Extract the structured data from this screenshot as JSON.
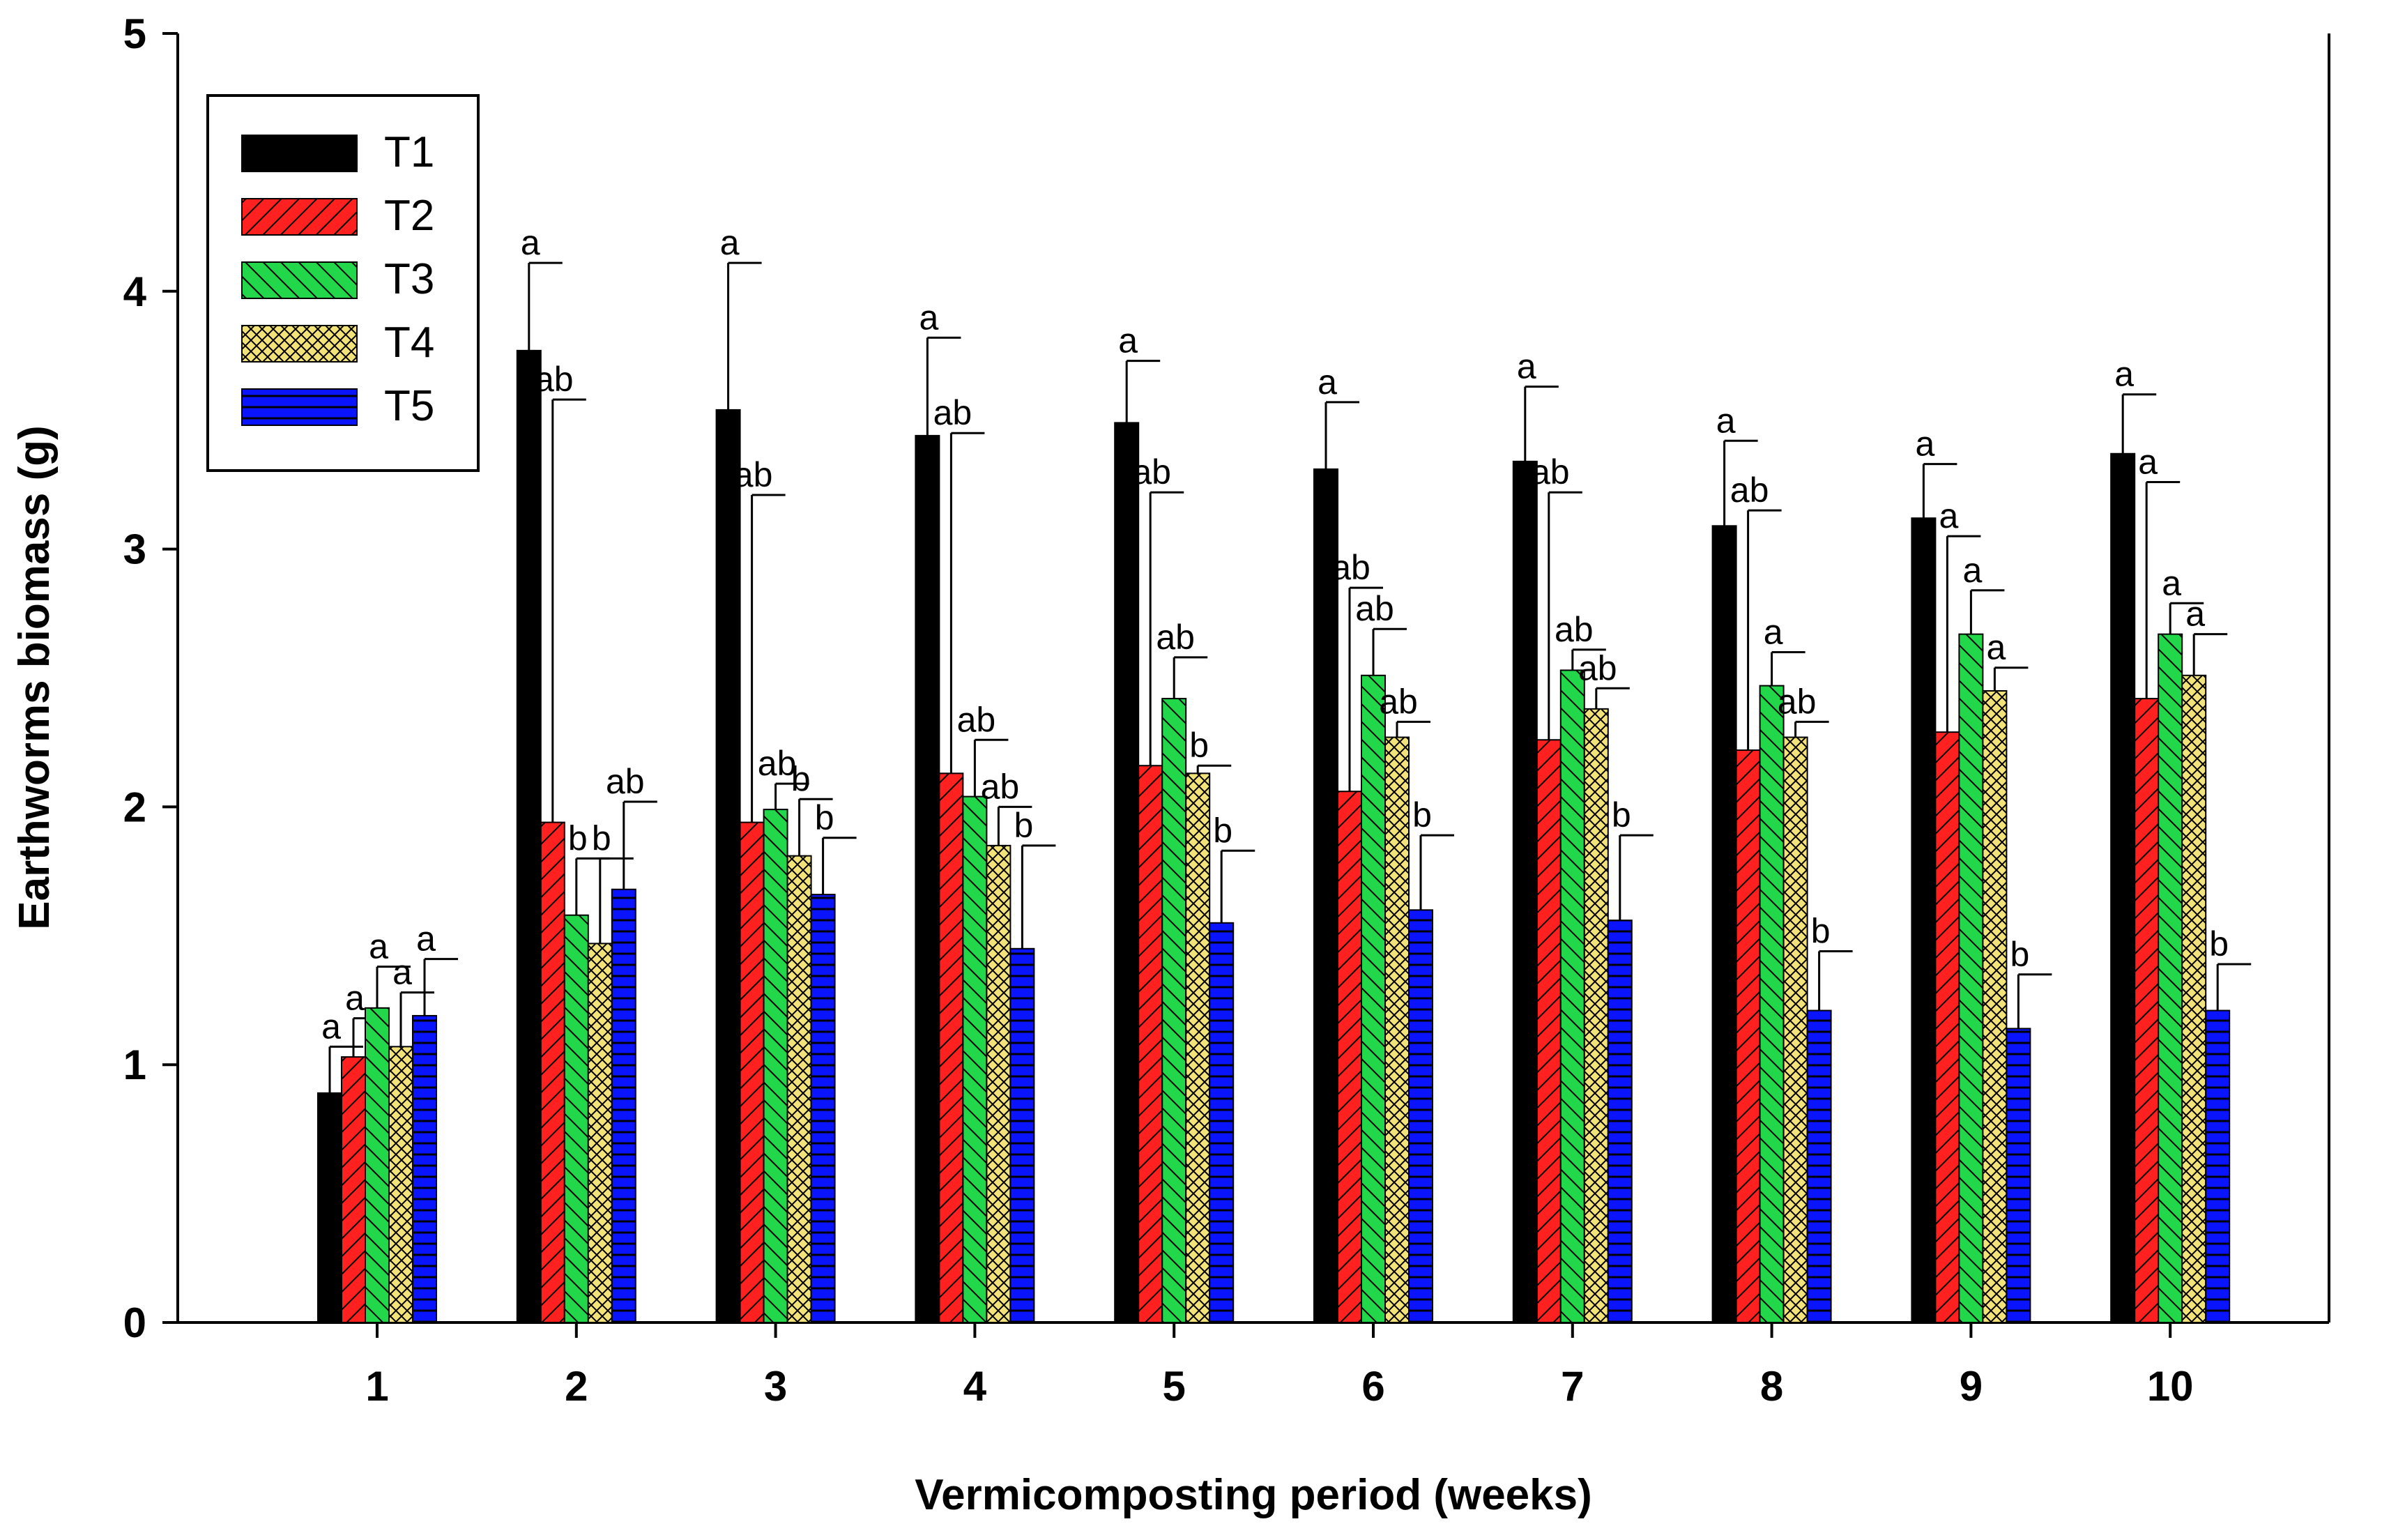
{
  "chart_data": {
    "type": "bar",
    "xlabel": "Vermicomposting period (weeks)",
    "ylabel": "Earthworms biomass (g)",
    "ylim": [
      0,
      5
    ],
    "yticks": [
      "0",
      "1",
      "2",
      "3",
      "4",
      "5"
    ],
    "categories": [
      "1",
      "2",
      "3",
      "4",
      "5",
      "6",
      "7",
      "8",
      "9",
      "10"
    ],
    "legend_position": "top-left",
    "grid": false,
    "error_bars": "upper only",
    "series": [
      {
        "name": "T1",
        "color": "#000000",
        "pattern": "solid",
        "values": [
          0.89,
          3.77,
          3.54,
          3.44,
          3.49,
          3.31,
          3.34,
          3.09,
          3.12,
          3.37
        ],
        "errors": [
          0.18,
          0.34,
          0.57,
          0.38,
          0.24,
          0.26,
          0.29,
          0.33,
          0.21,
          0.23
        ],
        "labels": [
          "a",
          "a",
          "a",
          "a",
          "a",
          "a",
          "a",
          "a",
          "a",
          "a"
        ]
      },
      {
        "name": "T2",
        "color": "#ff0000",
        "pattern": "diagonal-hatch",
        "values": [
          1.03,
          1.94,
          1.94,
          2.13,
          2.16,
          2.06,
          2.26,
          2.22,
          2.29,
          2.42
        ],
        "errors": [
          0.15,
          1.64,
          1.27,
          1.32,
          1.06,
          0.79,
          0.96,
          0.93,
          0.76,
          0.84
        ],
        "labels": [
          "a",
          "ab",
          "ab",
          "ab",
          "ab",
          "ab",
          "ab",
          "ab",
          "a",
          "a"
        ]
      },
      {
        "name": "T3",
        "color": "#00cc33",
        "pattern": "back-diagonal-hatch",
        "values": [
          1.22,
          1.58,
          1.99,
          2.04,
          2.42,
          2.51,
          2.53,
          2.47,
          2.67,
          2.67
        ],
        "errors": [
          0.16,
          0.22,
          0.1,
          0.22,
          0.16,
          0.18,
          0.08,
          0.13,
          0.17,
          0.12
        ],
        "labels": [
          "a",
          "b",
          "ab",
          "ab",
          "ab",
          "ab",
          "ab",
          "a",
          "a",
          "a"
        ]
      },
      {
        "name": "T4",
        "color": "#e8d860",
        "pattern": "cross-hatch",
        "values": [
          1.07,
          1.47,
          1.81,
          1.85,
          2.13,
          2.27,
          2.38,
          2.27,
          2.45,
          2.51
        ],
        "errors": [
          0.21,
          0.33,
          0.22,
          0.15,
          0.03,
          0.06,
          0.08,
          0.06,
          0.09,
          0.16
        ],
        "labels": [
          "a",
          "b",
          "b",
          "ab",
          "b",
          "ab",
          "ab",
          "ab",
          "a",
          "a"
        ]
      },
      {
        "name": "T5",
        "color": "#0000ff",
        "pattern": "horizontal-lines",
        "values": [
          1.19,
          1.68,
          1.66,
          1.45,
          1.55,
          1.6,
          1.56,
          1.21,
          1.14,
          1.21
        ],
        "errors": [
          0.22,
          0.34,
          0.22,
          0.4,
          0.28,
          0.29,
          0.33,
          0.23,
          0.21,
          0.18
        ],
        "labels": [
          "a",
          "ab",
          "b",
          "b",
          "b",
          "b",
          "b",
          "b",
          "b",
          "b"
        ]
      }
    ]
  }
}
